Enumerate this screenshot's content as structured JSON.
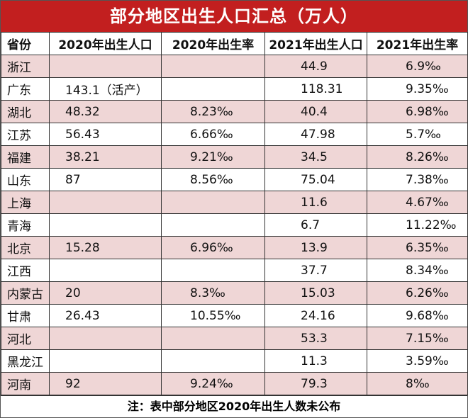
{
  "title": "部分地区出生人口汇总（万人）",
  "headers": [
    "省份",
    "2020年出生人口",
    "2020年出生率",
    "2021年出生人口",
    "2021年出生率"
  ],
  "rows": [
    {
      "region": "浙江",
      "births2020": "",
      "rate2020": "",
      "births2021": "44.9",
      "rate2021": "6.9‰"
    },
    {
      "region": "广东",
      "births2020": "143.1（活产）",
      "rate2020": "",
      "births2021": "118.31",
      "rate2021": "9.35‰"
    },
    {
      "region": "湖北",
      "births2020": "48.32",
      "rate2020": "8.23‰",
      "births2021": "40.4",
      "rate2021": "6.98‰"
    },
    {
      "region": "江苏",
      "births2020": "56.43",
      "rate2020": "6.66‰",
      "births2021": "47.98",
      "rate2021": "5.7‰"
    },
    {
      "region": "福建",
      "births2020": "38.21",
      "rate2020": "9.21‰",
      "births2021": "34.5",
      "rate2021": "8.26‰"
    },
    {
      "region": "山东",
      "births2020": "87",
      "rate2020": "8.56‰",
      "births2021": "75.04",
      "rate2021": "7.38‰"
    },
    {
      "region": "上海",
      "births2020": "",
      "rate2020": "",
      "births2021": "11.6",
      "rate2021": "4.67‰"
    },
    {
      "region": "青海",
      "births2020": "",
      "rate2020": "",
      "births2021": "6.7",
      "rate2021": "11.22‰"
    },
    {
      "region": "北京",
      "births2020": "15.28",
      "rate2020": "6.96‰",
      "births2021": "13.9",
      "rate2021": "6.35‰"
    },
    {
      "region": "江西",
      "births2020": "",
      "rate2020": "",
      "births2021": "37.7",
      "rate2021": "8.34‰"
    },
    {
      "region": "内蒙古",
      "births2020": "20",
      "rate2020": "8.3‰",
      "births2021": "15.03",
      "rate2021": "6.26‰"
    },
    {
      "region": "甘肃",
      "births2020": "26.43",
      "rate2020": "10.55‰",
      "births2021": "24.16",
      "rate2021": "9.68‰"
    },
    {
      "region": "河北",
      "births2020": "",
      "rate2020": "",
      "births2021": "53.3",
      "rate2021": "7.15‰"
    },
    {
      "region": "黑龙江",
      "births2020": "",
      "rate2020": "",
      "births2021": "11.3",
      "rate2021": "3.59‰"
    },
    {
      "region": "河南",
      "births2020": "92",
      "rate2020": "9.24‰",
      "births2021": "79.3",
      "rate2021": "8‰"
    }
  ],
  "note": "注：表中部分地区2020年出生人数未公布"
}
